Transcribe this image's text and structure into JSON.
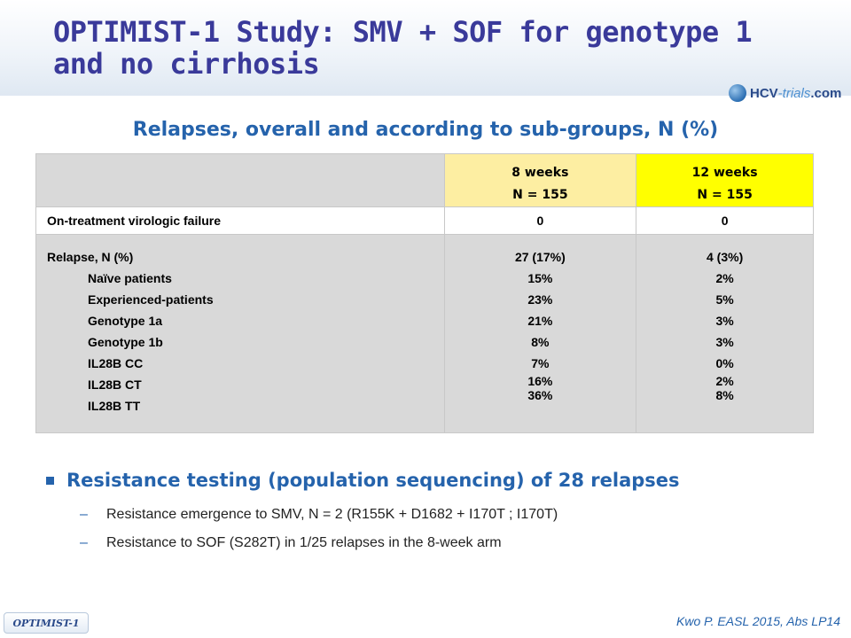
{
  "title": "OPTIMIST-1 Study: SMV + SOF for genotype 1 and no cirrhosis",
  "logo": {
    "main": "HCV",
    "accent": "-trials",
    "suffix": ".com"
  },
  "subtitle": "Relapses, overall and according to sub-groups, N (%)",
  "table": {
    "columns": [
      {
        "label": "8 weeks",
        "n": "N = 155"
      },
      {
        "label": "12 weeks",
        "n": "N = 155"
      }
    ],
    "on_treatment": {
      "label": "On-treatment virologic failure",
      "values": [
        "0",
        "0"
      ]
    },
    "relapse": {
      "label": "Relapse, N (%)",
      "overall": [
        "27 (17%)",
        "4 (3%)"
      ],
      "subgroups": [
        {
          "label": "Naïve patients",
          "values": [
            "15%",
            "2%"
          ]
        },
        {
          "label": "Experienced-patients",
          "values": [
            "23%",
            "5%"
          ]
        },
        {
          "label": "Genotype 1a",
          "values": [
            "21%",
            "3%"
          ]
        },
        {
          "label": "Genotype 1b",
          "values": [
            "8%",
            "3%"
          ]
        },
        {
          "label": "IL28B CC",
          "values": [
            "7%",
            "0%"
          ]
        },
        {
          "label": "IL28B CT",
          "values": [
            "16%",
            "2%"
          ]
        },
        {
          "label": "IL28B TT",
          "values": [
            "36%",
            "8%"
          ]
        }
      ]
    }
  },
  "bullet": {
    "heading": "Resistance testing (population sequencing) of 28 relapses",
    "items": [
      "Resistance emergence to SMV, N = 2 (R155K + D1682 + I170T ; I170T)",
      "Resistance to SOF (S282T) in 1/25 relapses in the 8-week arm"
    ]
  },
  "tag": "OPTIMIST-1",
  "reference": "Kwo P. EASL 2015, Abs LP14",
  "colors": {
    "title": "#3a3a9a",
    "accent": "#2563ac",
    "col8": "#fdeea2",
    "col12": "#ffff00",
    "gray": "#d9d9d9"
  }
}
